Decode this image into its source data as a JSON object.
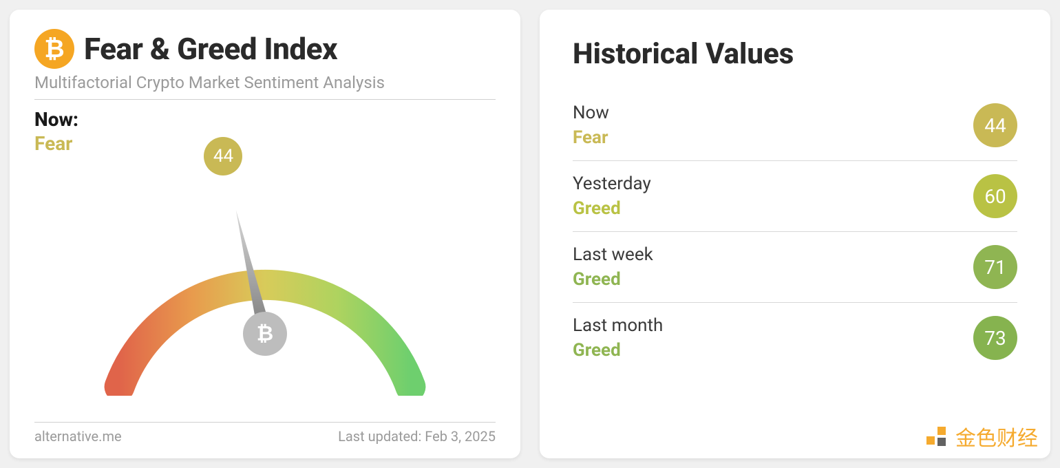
{
  "left": {
    "icon_bg": "#f5a623",
    "icon_glyph": "₿",
    "title": "Fear & Greed Index",
    "subtitle": "Multifactorial Crypto Market Sentiment Analysis",
    "now_label": "Now:",
    "now_sentiment": "Fear",
    "now_sentiment_color": "#c9b955",
    "gauge": {
      "value": 44,
      "min": 0,
      "max": 100,
      "bubble_bg": "#c9b955",
      "arc_colors": {
        "start": "#e0644a",
        "q1": "#e89b4d",
        "mid": "#d8cb5a",
        "q3": "#aed35f",
        "end": "#6ecf6e"
      },
      "stroke_width": 44,
      "needle_color": "#8e8e8e",
      "hub_bg": "#bdbdbd",
      "hub_glyph": "₿"
    },
    "footer_left": "alternative.me",
    "footer_right": "Last updated: Feb 3, 2025"
  },
  "right": {
    "title": "Historical Values",
    "items": [
      {
        "period": "Now",
        "sentiment": "Fear",
        "sentiment_color": "#c9b955",
        "value": 44,
        "badge_bg": "#c9b955"
      },
      {
        "period": "Yesterday",
        "sentiment": "Greed",
        "sentiment_color": "#b9c244",
        "value": 60,
        "badge_bg": "#b9c244"
      },
      {
        "period": "Last week",
        "sentiment": "Greed",
        "sentiment_color": "#8fb552",
        "value": 71,
        "badge_bg": "#8fb552"
      },
      {
        "period": "Last month",
        "sentiment": "Greed",
        "sentiment_color": "#8fb552",
        "value": 73,
        "badge_bg": "#86b34f"
      }
    ]
  },
  "watermark": {
    "text": "金色财经",
    "color": "#f5a623"
  }
}
